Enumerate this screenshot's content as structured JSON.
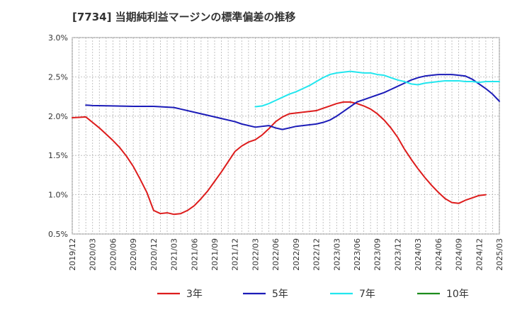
{
  "chart_data": {
    "type": "line",
    "title": "[7734]  当期純利益マージンの標準偏差の推移",
    "xlabel": "",
    "ylabel": "",
    "ylim": [
      0.5,
      3.0
    ],
    "y_ticks": [
      "0.5%",
      "1.0%",
      "1.5%",
      "2.0%",
      "2.5%",
      "3.0%"
    ],
    "y_tick_values": [
      0.5,
      1.0,
      1.5,
      2.0,
      2.5,
      3.0
    ],
    "x_ticks": [
      "2019/12",
      "2020/03",
      "2020/06",
      "2020/09",
      "2020/12",
      "2021/03",
      "2021/06",
      "2021/09",
      "2021/12",
      "2022/03",
      "2022/06",
      "2022/09",
      "2022/12",
      "2023/03",
      "2023/06",
      "2023/09",
      "2023/12",
      "2024/03",
      "2024/06",
      "2024/09",
      "2024/12",
      "2025/03"
    ],
    "grid": true,
    "legend_position": "bottom",
    "series": [
      {
        "name": "3年",
        "color": "#dd1c1c",
        "points": [
          [
            "2019/12",
            1.98
          ],
          [
            "2020/01",
            1.985
          ],
          [
            "2020/02",
            1.99
          ],
          [
            "2020/03",
            1.92
          ],
          [
            "2020/04",
            1.85
          ],
          [
            "2020/05",
            1.77
          ],
          [
            "2020/06",
            1.69
          ],
          [
            "2020/07",
            1.6
          ],
          [
            "2020/08",
            1.49
          ],
          [
            "2020/09",
            1.36
          ],
          [
            "2020/10",
            1.2
          ],
          [
            "2020/11",
            1.03
          ],
          [
            "2020/12",
            0.8
          ],
          [
            "2021/01",
            0.76
          ],
          [
            "2021/02",
            0.77
          ],
          [
            "2021/03",
            0.75
          ],
          [
            "2021/04",
            0.76
          ],
          [
            "2021/05",
            0.8
          ],
          [
            "2021/06",
            0.86
          ],
          [
            "2021/07",
            0.95
          ],
          [
            "2021/08",
            1.05
          ],
          [
            "2021/09",
            1.17
          ],
          [
            "2021/10",
            1.29
          ],
          [
            "2021/11",
            1.42
          ],
          [
            "2021/12",
            1.55
          ],
          [
            "2022/01",
            1.62
          ],
          [
            "2022/02",
            1.67
          ],
          [
            "2022/03",
            1.7
          ],
          [
            "2022/04",
            1.76
          ],
          [
            "2022/05",
            1.84
          ],
          [
            "2022/06",
            1.93
          ],
          [
            "2022/07",
            1.99
          ],
          [
            "2022/08",
            2.03
          ],
          [
            "2022/09",
            2.04
          ],
          [
            "2022/10",
            2.05
          ],
          [
            "2022/11",
            2.06
          ],
          [
            "2022/12",
            2.07
          ],
          [
            "2023/01",
            2.1
          ],
          [
            "2023/02",
            2.13
          ],
          [
            "2023/03",
            2.16
          ],
          [
            "2023/04",
            2.18
          ],
          [
            "2023/05",
            2.18
          ],
          [
            "2023/06",
            2.16
          ],
          [
            "2023/07",
            2.13
          ],
          [
            "2023/08",
            2.09
          ],
          [
            "2023/09",
            2.03
          ],
          [
            "2023/10",
            1.95
          ],
          [
            "2023/11",
            1.85
          ],
          [
            "2023/12",
            1.73
          ],
          [
            "2024/01",
            1.58
          ],
          [
            "2024/02",
            1.45
          ],
          [
            "2024/03",
            1.33
          ],
          [
            "2024/04",
            1.22
          ],
          [
            "2024/05",
            1.12
          ],
          [
            "2024/06",
            1.03
          ],
          [
            "2024/07",
            0.95
          ],
          [
            "2024/08",
            0.9
          ],
          [
            "2024/09",
            0.89
          ],
          [
            "2024/10",
            0.93
          ],
          [
            "2024/11",
            0.96
          ],
          [
            "2024/12",
            0.99
          ],
          [
            "2025/01",
            1.0
          ]
        ]
      },
      {
        "name": "5年",
        "color": "#1c1cb8",
        "points": [
          [
            "2020/02",
            2.14
          ],
          [
            "2020/03",
            2.135
          ],
          [
            "2020/06",
            2.13
          ],
          [
            "2020/09",
            2.125
          ],
          [
            "2020/12",
            2.125
          ],
          [
            "2021/03",
            2.11
          ],
          [
            "2021/04",
            2.09
          ],
          [
            "2021/06",
            2.05
          ],
          [
            "2021/09",
            1.99
          ],
          [
            "2021/10",
            1.97
          ],
          [
            "2021/12",
            1.93
          ],
          [
            "2022/01",
            1.9
          ],
          [
            "2022/03",
            1.86
          ],
          [
            "2022/05",
            1.88
          ],
          [
            "2022/06",
            1.85
          ],
          [
            "2022/07",
            1.83
          ],
          [
            "2022/08",
            1.85
          ],
          [
            "2022/09",
            1.87
          ],
          [
            "2022/10",
            1.88
          ],
          [
            "2022/11",
            1.89
          ],
          [
            "2022/12",
            1.9
          ],
          [
            "2023/01",
            1.92
          ],
          [
            "2023/02",
            1.95
          ],
          [
            "2023/03",
            2.0
          ],
          [
            "2023/04",
            2.06
          ],
          [
            "2023/05",
            2.12
          ],
          [
            "2023/06",
            2.18
          ],
          [
            "2023/07",
            2.21
          ],
          [
            "2023/08",
            2.24
          ],
          [
            "2023/09",
            2.27
          ],
          [
            "2023/10",
            2.3
          ],
          [
            "2023/11",
            2.34
          ],
          [
            "2023/12",
            2.38
          ],
          [
            "2024/01",
            2.42
          ],
          [
            "2024/02",
            2.46
          ],
          [
            "2024/03",
            2.49
          ],
          [
            "2024/04",
            2.51
          ],
          [
            "2024/05",
            2.52
          ],
          [
            "2024/06",
            2.53
          ],
          [
            "2024/07",
            2.53
          ],
          [
            "2024/08",
            2.53
          ],
          [
            "2024/09",
            2.52
          ],
          [
            "2024/10",
            2.51
          ],
          [
            "2024/11",
            2.47
          ],
          [
            "2024/12",
            2.41
          ],
          [
            "2025/01",
            2.35
          ],
          [
            "2025/02",
            2.28
          ],
          [
            "2025/03",
            2.19
          ]
        ]
      },
      {
        "name": "7年",
        "color": "#22e6ee",
        "points": [
          [
            "2022/03",
            2.12
          ],
          [
            "2022/04",
            2.13
          ],
          [
            "2022/05",
            2.16
          ],
          [
            "2022/06",
            2.2
          ],
          [
            "2022/07",
            2.24
          ],
          [
            "2022/08",
            2.28
          ],
          [
            "2022/09",
            2.31
          ],
          [
            "2022/10",
            2.35
          ],
          [
            "2022/11",
            2.39
          ],
          [
            "2022/12",
            2.44
          ],
          [
            "2023/01",
            2.49
          ],
          [
            "2023/02",
            2.53
          ],
          [
            "2023/03",
            2.55
          ],
          [
            "2023/04",
            2.56
          ],
          [
            "2023/05",
            2.57
          ],
          [
            "2023/06",
            2.56
          ],
          [
            "2023/07",
            2.55
          ],
          [
            "2023/08",
            2.55
          ],
          [
            "2023/09",
            2.53
          ],
          [
            "2023/10",
            2.52
          ],
          [
            "2023/11",
            2.49
          ],
          [
            "2023/12",
            2.46
          ],
          [
            "2024/01",
            2.44
          ],
          [
            "2024/02",
            2.41
          ],
          [
            "2024/03",
            2.4
          ],
          [
            "2024/04",
            2.42
          ],
          [
            "2024/05",
            2.43
          ],
          [
            "2024/06",
            2.44
          ],
          [
            "2024/07",
            2.45
          ],
          [
            "2024/08",
            2.45
          ],
          [
            "2024/09",
            2.45
          ],
          [
            "2024/10",
            2.44
          ],
          [
            "2024/11",
            2.44
          ],
          [
            "2024/12",
            2.43
          ],
          [
            "2025/01",
            2.44
          ],
          [
            "2025/02",
            2.44
          ],
          [
            "2025/03",
            2.44
          ]
        ]
      },
      {
        "name": "10年",
        "color": "#1c8c1c",
        "points": []
      }
    ]
  }
}
